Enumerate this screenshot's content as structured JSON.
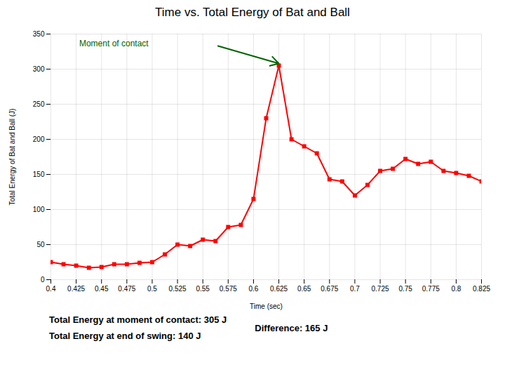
{
  "chart_data": {
    "type": "line",
    "title": "Time vs. Total Energy of Bat and Ball",
    "xlabel": "Time (sec)",
    "ylabel": "Total Energy of Bat and Ball (J)",
    "x": [
      0.4,
      0.4125,
      0.425,
      0.4375,
      0.45,
      0.4625,
      0.475,
      0.4875,
      0.5,
      0.5125,
      0.525,
      0.5375,
      0.55,
      0.5625,
      0.575,
      0.5875,
      0.6,
      0.6125,
      0.625,
      0.6375,
      0.65,
      0.6625,
      0.675,
      0.6875,
      0.7,
      0.7125,
      0.725,
      0.7375,
      0.75,
      0.7625,
      0.775,
      0.7875,
      0.8,
      0.8125,
      0.825
    ],
    "values": [
      25,
      22,
      20,
      17,
      18,
      22,
      22,
      24,
      25,
      36,
      50,
      48,
      57,
      55,
      75,
      78,
      115,
      230,
      305,
      200,
      190,
      180,
      143,
      140,
      120,
      135,
      155,
      158,
      172,
      165,
      168,
      155,
      152,
      148,
      140
    ],
    "color": "#ff0000",
    "marker": "square",
    "xlim": [
      0.4,
      0.825
    ],
    "ylim": [
      0,
      350
    ],
    "xticks": [
      0.4,
      0.425,
      0.45,
      0.475,
      0.5,
      0.525,
      0.55,
      0.575,
      0.6,
      0.625,
      0.65,
      0.675,
      0.7,
      0.725,
      0.75,
      0.775,
      0.8,
      0.825
    ],
    "yticks": [
      0,
      50,
      100,
      150,
      200,
      250,
      300,
      350
    ],
    "grid": true,
    "annotations": [
      {
        "text": "Moment of contact",
        "x": 0.428,
        "y": 336,
        "arrow_from": [
          0.565,
          333
        ],
        "arrow_to": [
          0.625,
          308
        ],
        "color": "#006400"
      }
    ],
    "notes": [
      "Total Energy at moment of contact: 305 J",
      "Total Energy at end of swing: 140 J",
      "Difference: 165 J"
    ]
  }
}
